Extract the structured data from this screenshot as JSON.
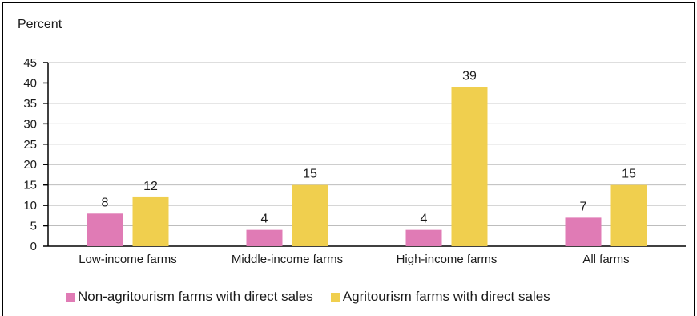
{
  "chart_data": {
    "type": "bar",
    "ylabel": "Percent",
    "ylim": [
      0,
      45
    ],
    "yticks": [
      "0",
      "5",
      "10",
      "15",
      "20",
      "25",
      "30",
      "35",
      "40",
      "45"
    ],
    "categories": [
      "Low-income farms",
      "Middle-income farms",
      "High-income farms",
      "All farms"
    ],
    "series": [
      {
        "name": "Non-agritourism farms with direct sales",
        "color": "#e07bb5",
        "values": [
          8,
          4,
          4,
          7
        ]
      },
      {
        "name": "Agritourism farms with direct sales",
        "color": "#f0cf4e",
        "values": [
          12,
          15,
          39,
          15
        ]
      }
    ],
    "data_labels": [
      [
        "8",
        "4",
        "4",
        "7"
      ],
      [
        "12",
        "15",
        "39",
        "15"
      ]
    ],
    "grid": true,
    "legend_position": "bottom"
  }
}
